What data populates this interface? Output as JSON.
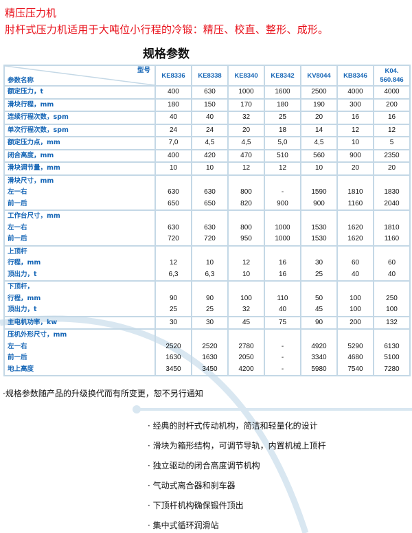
{
  "header": {
    "title": "精压压力机",
    "subtitle": "肘杆式压力机适用于大吨位小行程的冷锻：精压、校直、整形、成形。"
  },
  "spec_title": "规格参数",
  "table": {
    "corner_model": "型号",
    "corner_param": "参数名称",
    "models": [
      "KE8336",
      "KE8338",
      "KE8340",
      "KE8342",
      "KV8044",
      "KB8346",
      "K04.\n560.846"
    ],
    "rows": [
      {
        "label": [
          "额定压力，t"
        ],
        "values": [
          [
            "400",
            "630",
            "1000",
            "1600",
            "2500",
            "4000",
            "4000"
          ]
        ]
      },
      {
        "label": [
          "滑块行程，mm"
        ],
        "values": [
          [
            "180",
            "150",
            "170",
            "180",
            "190",
            "300",
            "200"
          ]
        ]
      },
      {
        "label": [
          "连续行程次数，spm"
        ],
        "values": [
          [
            "40",
            "40",
            "32",
            "25",
            "20",
            "16",
            "16"
          ]
        ]
      },
      {
        "label": [
          "单次行程次数，spm"
        ],
        "values": [
          [
            "24",
            "24",
            "20",
            "18",
            "14",
            "12",
            "12"
          ]
        ]
      },
      {
        "label": [
          "额定压力点，mm"
        ],
        "values": [
          [
            "7,0",
            "4,5",
            "4,5",
            "5,0",
            "4,5",
            "10",
            "5"
          ]
        ]
      },
      {
        "label": [
          "闭合高度，mm"
        ],
        "values": [
          [
            "400",
            "420",
            "470",
            "510",
            "560",
            "900",
            "2350"
          ]
        ]
      },
      {
        "label": [
          "滑块调节量，mm"
        ],
        "values": [
          [
            "10",
            "10",
            "12",
            "12",
            "10",
            "20",
            "20"
          ]
        ]
      },
      {
        "label": [
          "滑块尺寸，mm",
          "左一右",
          "前一后"
        ],
        "values": [
          [
            "630",
            "630",
            "800",
            "-",
            "1590",
            "1810",
            "1830"
          ],
          [
            "650",
            "650",
            "820",
            "900",
            "900",
            "1160",
            "2040"
          ]
        ]
      },
      {
        "label": [
          "工作台尺寸，mm",
          "左一右",
          "前一后"
        ],
        "values": [
          [
            "630",
            "630",
            "800",
            "1000",
            "1530",
            "1620",
            "1810"
          ],
          [
            "720",
            "720",
            "950",
            "1000",
            "1530",
            "1620",
            "1160"
          ]
        ]
      },
      {
        "label": [
          "上顶杆",
          "行程，mm",
          "顶出力，t"
        ],
        "values": [
          [
            "12",
            "10",
            "12",
            "16",
            "30",
            "60",
            "60"
          ],
          [
            "6,3",
            "6,3",
            "10",
            "16",
            "25",
            "40",
            "40"
          ]
        ]
      },
      {
        "label": [
          "下顶杆，",
          "行程，mm",
          "顶出力，t"
        ],
        "values": [
          [
            "90",
            "90",
            "100",
            "110",
            "50",
            "100",
            "250"
          ],
          [
            "25",
            "25",
            "32",
            "40",
            "45",
            "100",
            "100"
          ]
        ]
      },
      {
        "label": [
          "主电机功率，kw"
        ],
        "values": [
          [
            "30",
            "30",
            "45",
            "75",
            "90",
            "200",
            "132"
          ]
        ]
      },
      {
        "label": [
          "压机外形尺寸，mm",
          "左一右",
          "前一后",
          "地上高度"
        ],
        "values": [
          [
            "2520",
            "2520",
            "2780",
            "-",
            "4920",
            "5290",
            "6130"
          ],
          [
            "1630",
            "1630",
            "2050",
            "-",
            "3340",
            "4680",
            "5100"
          ],
          [
            "3450",
            "3450",
            "4200",
            "-",
            "5980",
            "7540",
            "7280"
          ]
        ]
      }
    ]
  },
  "note": "·规格参数随产品的升级换代而有所变更，恕不另行通知",
  "features": [
    "经典的肘杆式传动机构，简洁和轻量化的设计",
    "滑块为箱形结构，可调节导轨，内置机械上顶杆",
    "独立驱动的闭合高度调节机构",
    "气动式离合器和刹车器",
    "下顶杆机构确保锻件顶出",
    "集中式循环润滑站"
  ],
  "colors": {
    "title_red": "#e8101a",
    "label_blue": "#1666b6",
    "border": "#c4d8e6",
    "swoosh": "#d3e3ee"
  }
}
